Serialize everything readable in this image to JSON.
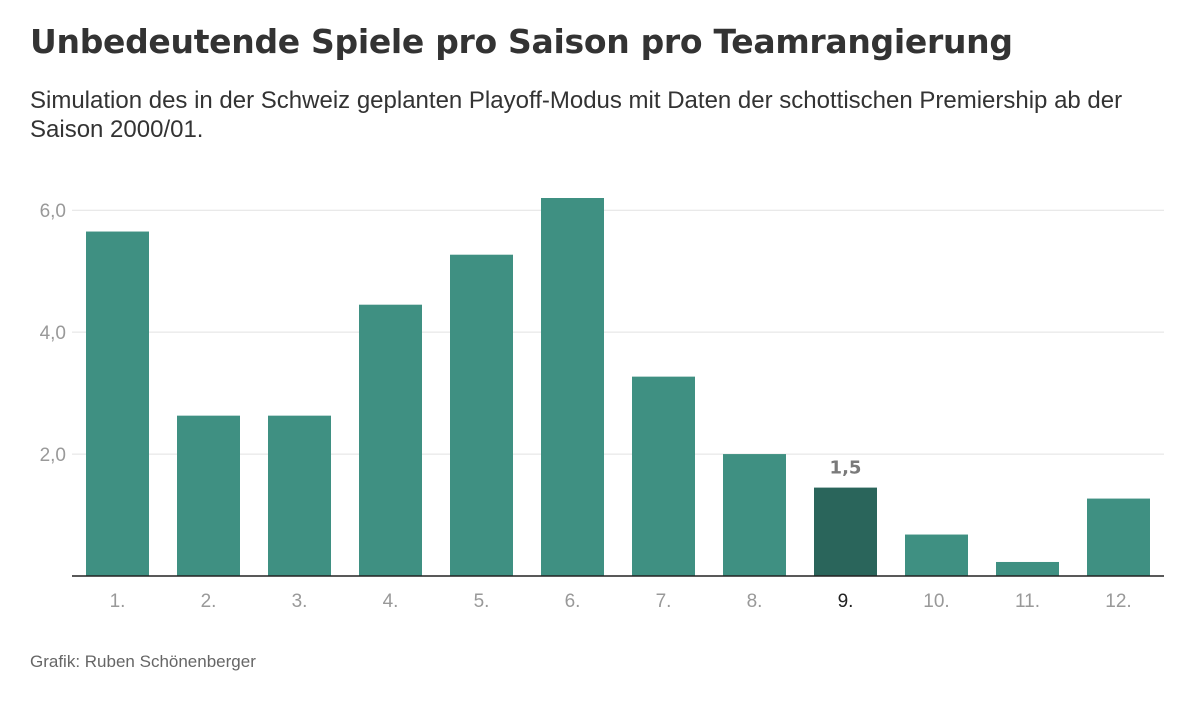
{
  "chart_data": {
    "type": "bar",
    "title": "Unbedeutende Spiele pro Saison pro Teamrangierung",
    "subtitle": "Simulation des in der Schweiz geplanten Playoff-Modus mit Daten der schottischen Premiership ab der Saison 2000/01.",
    "categories": [
      "1.",
      "2.",
      "3.",
      "4.",
      "5.",
      "6.",
      "7.",
      "8.",
      "9.",
      "10.",
      "11.",
      "12."
    ],
    "values": [
      5.65,
      2.63,
      2.63,
      4.45,
      5.27,
      6.2,
      3.27,
      2.0,
      1.45,
      0.68,
      0.23,
      1.27
    ],
    "yticks": [
      "6,0",
      "4,0",
      "2,0"
    ],
    "ytick_values": [
      6,
      4,
      2
    ],
    "ylim": [
      0,
      6.2
    ],
    "xlabel": "",
    "ylabel": "",
    "highlight_index": 8,
    "highlight_label": "1,5",
    "grid": true,
    "colors": {
      "bar": "#3f9082",
      "highlight": "#2a655b",
      "grid": "#e2e2e2",
      "axis": "#222222",
      "tick_label": "#999999",
      "highlight_tick_label": "#222222",
      "data_label": "#7a7a7a"
    }
  },
  "source": "Grafik: Ruben Schönenberger"
}
